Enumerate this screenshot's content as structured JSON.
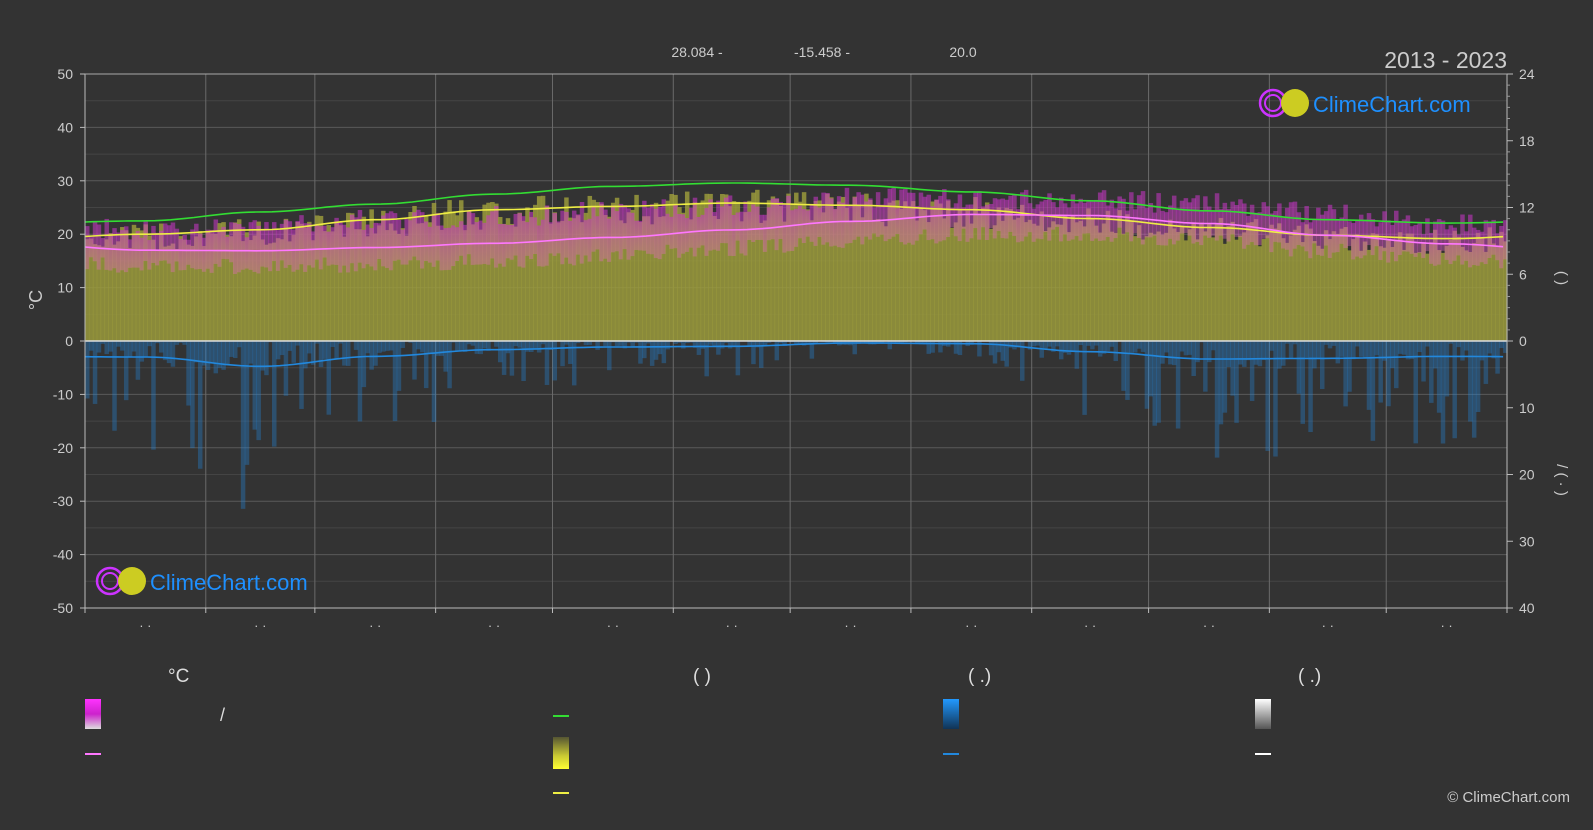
{
  "header": {
    "coords": [
      "28.084 -",
      "-15.458 -",
      "20.0"
    ],
    "period": "2013 - 2023"
  },
  "logo": {
    "text": "ClimeChart.com"
  },
  "copyright": "© ClimeChart.com",
  "axes": {
    "left_unit": "°C",
    "left_ticks": [
      50,
      40,
      30,
      20,
      10,
      0,
      -10,
      -20,
      -30,
      -40,
      -50
    ],
    "right_upper_ticks": [
      24,
      18,
      12,
      6,
      0
    ],
    "right_lower_ticks": [
      10,
      20,
      30,
      40
    ],
    "right_upper_label": "(     )",
    "right_lower_label": "/  (  ·  )",
    "month_labels": [
      "· ·",
      "· ·",
      "· ·",
      "· ·",
      "· ·",
      "· ·",
      "· ·",
      "· ·",
      "· ·",
      "· ·",
      "· ·",
      "· ·"
    ]
  },
  "legend": {
    "col1": {
      "head": "°C",
      "item1": "/"
    },
    "col2": {
      "head": "(           )"
    },
    "col3": {
      "head": "(    .)"
    },
    "col4": {
      "head": "(    .)"
    }
  },
  "colors": {
    "background": "#333333",
    "grid": "#555555",
    "daylight": "#33dd33",
    "sunshine": "#eeee44",
    "temp_mean": "#ff77ff",
    "temp_range": "#cc33cc",
    "precip": "#2288dd",
    "sunshine_fill": "#9a9a3c",
    "logo_text": "#1e90ff"
  },
  "chart_data": {
    "type": "line",
    "title": "",
    "x": [
      1,
      2,
      3,
      4,
      5,
      6,
      7,
      8,
      9,
      10,
      11,
      12
    ],
    "ylim_temp": [
      -50,
      50
    ],
    "ylim_hours": [
      0,
      24
    ],
    "ylim_precip_mm": [
      0,
      40
    ],
    "series": [
      {
        "key": "daylight_hours",
        "values": [
          10.8,
          11.6,
          12.3,
          13.2,
          13.9,
          14.2,
          14.0,
          13.4,
          12.6,
          11.7,
          10.9,
          10.6
        ]
      },
      {
        "key": "sunshine_hours",
        "values": [
          9.6,
          10.0,
          10.9,
          11.8,
          12.1,
          12.4,
          12.2,
          11.8,
          11.0,
          10.2,
          9.5,
          9.2
        ]
      },
      {
        "key": "temp_mean_c",
        "values": [
          17.0,
          16.9,
          17.5,
          18.3,
          19.4,
          20.8,
          22.4,
          23.7,
          23.5,
          22.0,
          19.8,
          18.2
        ]
      },
      {
        "key": "temp_max_c",
        "values": [
          20,
          20.5,
          22,
          22.5,
          23.5,
          24.5,
          26,
          26,
          25.5,
          25,
          23,
          21
        ]
      },
      {
        "key": "temp_min_c",
        "values": [
          14.5,
          14.5,
          15,
          15.5,
          16.5,
          18,
          19.5,
          20.5,
          20.5,
          19.5,
          17.5,
          16
        ]
      },
      {
        "key": "precip_mm",
        "values": [
          2.4,
          3.8,
          2.3,
          1.3,
          0.9,
          0.8,
          0.3,
          0.4,
          1.6,
          2.7,
          2.6,
          2.3
        ]
      }
    ]
  }
}
